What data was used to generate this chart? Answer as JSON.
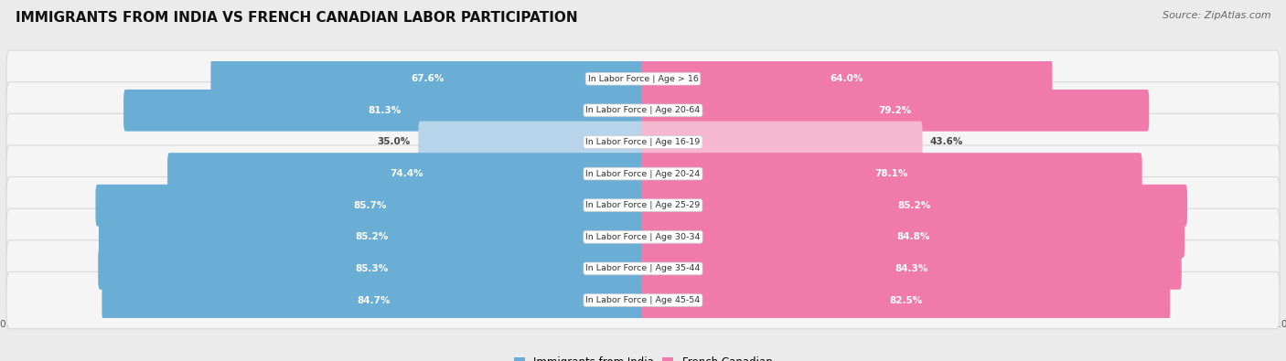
{
  "title": "IMMIGRANTS FROM INDIA VS FRENCH CANADIAN LABOR PARTICIPATION",
  "source": "Source: ZipAtlas.com",
  "categories": [
    "In Labor Force | Age > 16",
    "In Labor Force | Age 20-64",
    "In Labor Force | Age 16-19",
    "In Labor Force | Age 20-24",
    "In Labor Force | Age 25-29",
    "In Labor Force | Age 30-34",
    "In Labor Force | Age 35-44",
    "In Labor Force | Age 45-54"
  ],
  "india_values": [
    67.6,
    81.3,
    35.0,
    74.4,
    85.7,
    85.2,
    85.3,
    84.7
  ],
  "french_values": [
    64.0,
    79.2,
    43.6,
    78.1,
    85.2,
    84.8,
    84.3,
    82.5
  ],
  "india_color": "#6aaed6",
  "india_color_light": "#b8d4ea",
  "french_color": "#f07baa",
  "french_color_light": "#f5b8d0",
  "bg_color": "#ebebeb",
  "row_bg_color": "#f5f5f5",
  "row_edge_color": "#d8d8d8",
  "title_fontsize": 11,
  "source_fontsize": 8,
  "bar_label_fontsize": 7.5,
  "category_fontsize": 6.8,
  "legend_fontsize": 8.5,
  "axis_label_fontsize": 7.5,
  "threshold_for_white": 45
}
